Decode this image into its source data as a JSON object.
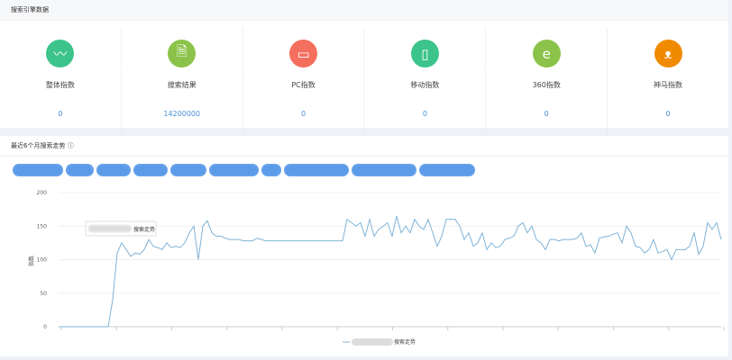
{
  "panel1": {
    "title": "搜索引擎数据",
    "cards": [
      {
        "label": "整体指数",
        "value": "0",
        "icon": "trend-chart-icon",
        "color": "#3cc48a"
      },
      {
        "label": "搜索结果",
        "value": "14200000",
        "icon": "document-search-icon",
        "color": "#8bc34a"
      },
      {
        "label": "PC指数",
        "value": "0",
        "icon": "monitor-icon",
        "color": "#f56f5e"
      },
      {
        "label": "移动指数",
        "value": "0",
        "icon": "mobile-phone-icon",
        "color": "#3cc48a"
      },
      {
        "label": "360指数",
        "value": "0",
        "icon": "ie-browser-icon",
        "color": "#8bc34a"
      },
      {
        "label": "神马指数",
        "value": "0",
        "icon": "alpaca-icon",
        "color": "#f08a00"
      }
    ]
  },
  "panel2": {
    "title": "最近6个月搜索走势",
    "info_icon": "info-circle-icon"
  },
  "chart_data": {
    "type": "line",
    "ylabel": "指数",
    "ylim": [
      0,
      200
    ],
    "yticks": [
      0,
      50,
      100,
      150,
      200
    ],
    "grid": true,
    "legend": "搜索走势",
    "legend_position": "bottom",
    "color": "#7fb3d8",
    "values": [
      0,
      0,
      0,
      0,
      0,
      0,
      0,
      0,
      0,
      0,
      0,
      0,
      40,
      110,
      125,
      115,
      105,
      110,
      108,
      115,
      130,
      120,
      118,
      115,
      125,
      118,
      120,
      118,
      125,
      140,
      150,
      100,
      150,
      158,
      140,
      135,
      135,
      132,
      130,
      130,
      130,
      128,
      128,
      128,
      132,
      130,
      128,
      128,
      128,
      128,
      128,
      128,
      128,
      128,
      128,
      128,
      128,
      128,
      128,
      128,
      128,
      128,
      128,
      128,
      160,
      155,
      150,
      155,
      135,
      160,
      135,
      145,
      150,
      155,
      135,
      165,
      140,
      150,
      140,
      160,
      150,
      145,
      160,
      140,
      120,
      135,
      160,
      160,
      160,
      150,
      130,
      140,
      120,
      125,
      140,
      115,
      125,
      118,
      120,
      130,
      132,
      135,
      150,
      155,
      140,
      150,
      130,
      125,
      115,
      130,
      130,
      128,
      130,
      130,
      130,
      132,
      140,
      120,
      122,
      110,
      132,
      134,
      135,
      138,
      140,
      125,
      150,
      140,
      120,
      118,
      110,
      115,
      130,
      110,
      112,
      115,
      100,
      115,
      115,
      115,
      120,
      140,
      108,
      120,
      155,
      145,
      155,
      130
    ]
  }
}
